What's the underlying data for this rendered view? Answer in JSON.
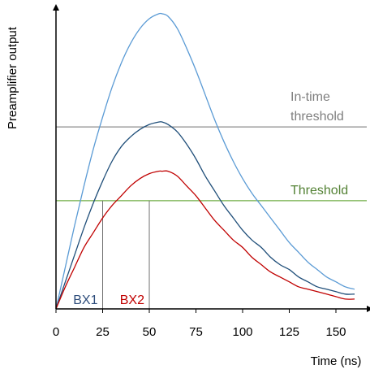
{
  "chart_data": {
    "type": "line",
    "xlabel": "Time (ns)",
    "ylabel": "Preamplifier output",
    "xlim": [
      0,
      160
    ],
    "ylim": [
      0,
      1.19
    ],
    "x_ticks": [
      0,
      25,
      50,
      75,
      100,
      125,
      150
    ],
    "grid": false,
    "series": [
      {
        "color": "#5b9bd5",
        "x": [
          0,
          5,
          10,
          15,
          20,
          25,
          30,
          35,
          40,
          45,
          50,
          55,
          57,
          60,
          65,
          70,
          75,
          80,
          85,
          90,
          95,
          100,
          105,
          110,
          115,
          120,
          125,
          130,
          135,
          140,
          145,
          150,
          155,
          160
        ],
        "y": [
          0.0,
          0.17,
          0.34,
          0.5,
          0.65,
          0.78,
          0.9,
          1.0,
          1.08,
          1.14,
          1.18,
          1.2,
          1.2,
          1.19,
          1.14,
          1.06,
          0.97,
          0.87,
          0.77,
          0.68,
          0.6,
          0.53,
          0.47,
          0.42,
          0.37,
          0.32,
          0.27,
          0.23,
          0.19,
          0.16,
          0.13,
          0.11,
          0.09,
          0.08
        ]
      },
      {
        "color": "#1f4e79",
        "x": [
          0,
          5,
          10,
          15,
          20,
          25,
          30,
          35,
          40,
          45,
          50,
          55,
          57,
          60,
          65,
          70,
          75,
          80,
          85,
          90,
          95,
          100,
          105,
          110,
          115,
          120,
          125,
          130,
          135,
          140,
          145,
          150,
          155,
          160
        ],
        "y": [
          0.0,
          0.11,
          0.22,
          0.33,
          0.43,
          0.52,
          0.6,
          0.66,
          0.7,
          0.73,
          0.75,
          0.76,
          0.76,
          0.75,
          0.72,
          0.67,
          0.61,
          0.54,
          0.48,
          0.42,
          0.37,
          0.32,
          0.28,
          0.25,
          0.21,
          0.18,
          0.16,
          0.13,
          0.11,
          0.09,
          0.08,
          0.07,
          0.06,
          0.06
        ]
      },
      {
        "color": "#c00000",
        "x": [
          0,
          5,
          10,
          15,
          20,
          25,
          30,
          35,
          40,
          45,
          50,
          55,
          57,
          60,
          65,
          70,
          75,
          80,
          85,
          90,
          95,
          100,
          105,
          110,
          115,
          120,
          125,
          130,
          135,
          140,
          145,
          150,
          155,
          160
        ],
        "y": [
          0.0,
          0.09,
          0.17,
          0.25,
          0.31,
          0.37,
          0.42,
          0.46,
          0.5,
          0.53,
          0.55,
          0.56,
          0.56,
          0.56,
          0.54,
          0.5,
          0.46,
          0.41,
          0.36,
          0.32,
          0.28,
          0.25,
          0.21,
          0.18,
          0.15,
          0.13,
          0.11,
          0.09,
          0.08,
          0.07,
          0.06,
          0.05,
          0.04,
          0.04
        ]
      }
    ],
    "thresholds": [
      {
        "label": "In-time threshold",
        "label_lines": [
          "In-time",
          "threshold"
        ],
        "y": 0.74,
        "color": "#8c8c8c",
        "label_color": "#7f7f7f"
      },
      {
        "label": "Threshold",
        "label_lines": [
          "Threshold"
        ],
        "y": 0.44,
        "color": "#70ad47",
        "label_color": "#548235"
      }
    ],
    "markers": [
      {
        "label": "BX1",
        "x": 25,
        "y": 0.44,
        "color": "#2e4d7b"
      },
      {
        "label": "BX2",
        "x": 50,
        "y": 0.44,
        "color": "#c00000"
      }
    ]
  }
}
